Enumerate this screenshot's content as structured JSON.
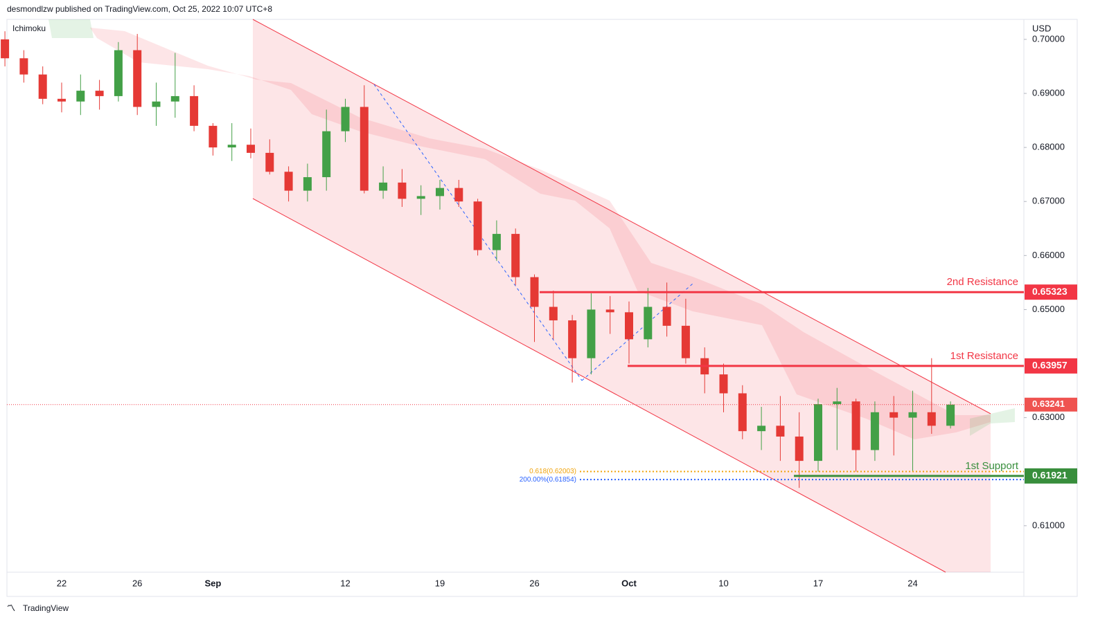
{
  "chart_data": {
    "type": "candlestick",
    "source": "desmondlzw published on TradingView.com, Oct 25, 2022 10:07 UTC+8",
    "indicator": "Ichimoku",
    "y_unit": "USD",
    "brand": "TradingView",
    "categories": [
      null,
      null,
      null,
      "22",
      null,
      null,
      null,
      "26",
      null,
      null,
      null,
      "Sep",
      null,
      null,
      null,
      null,
      null,
      null,
      "12",
      null,
      null,
      null,
      null,
      "19",
      null,
      null,
      null,
      null,
      "26",
      null,
      null,
      null,
      null,
      "Oct",
      null,
      null,
      null,
      null,
      "10",
      null,
      null,
      null,
      null,
      "17",
      null,
      null,
      null,
      null,
      "24",
      null,
      null
    ],
    "open": [
      0.7,
      0.6965,
      0.6935,
      0.689,
      0.6885,
      0.6905,
      0.6895,
      0.698,
      0.6875,
      0.6885,
      0.6895,
      0.684,
      0.68,
      0.6805,
      0.679,
      0.6755,
      0.672,
      0.6745,
      0.683,
      0.6875,
      0.672,
      0.6735,
      0.6705,
      0.671,
      0.6725,
      0.67,
      0.661,
      0.664,
      0.656,
      0.6505,
      0.648,
      0.641,
      0.65,
      0.6495,
      0.6445,
      0.6505,
      0.647,
      0.641,
      0.638,
      0.6345,
      0.6275,
      0.6285,
      0.6265,
      0.622,
      0.6325,
      0.633,
      0.624,
      0.631,
      0.63,
      0.631,
      0.6285
    ],
    "high": [
      0.7015,
      0.698,
      0.695,
      0.692,
      0.6935,
      0.6925,
      0.6995,
      0.701,
      0.692,
      0.6975,
      0.6915,
      0.6845,
      0.6845,
      0.6835,
      0.6815,
      0.6765,
      0.677,
      0.687,
      0.689,
      0.6915,
      0.6765,
      0.676,
      0.673,
      0.674,
      0.674,
      0.6705,
      0.6665,
      0.665,
      0.6565,
      0.6535,
      0.649,
      0.653,
      0.6525,
      0.6515,
      0.654,
      0.655,
      0.652,
      0.643,
      0.64,
      0.636,
      0.632,
      0.634,
      0.631,
      0.6335,
      0.6355,
      0.6335,
      0.633,
      0.634,
      0.635,
      0.641,
      0.633
    ],
    "low": [
      0.695,
      0.692,
      0.688,
      0.6865,
      0.686,
      0.687,
      0.6885,
      0.686,
      0.684,
      0.6855,
      0.683,
      0.6785,
      0.6775,
      0.678,
      0.675,
      0.67,
      0.67,
      0.672,
      0.681,
      0.6715,
      0.6705,
      0.669,
      0.6675,
      0.6685,
      0.669,
      0.66,
      0.659,
      0.6545,
      0.644,
      0.6445,
      0.6365,
      0.638,
      0.6455,
      0.64,
      0.643,
      0.645,
      0.64,
      0.6345,
      0.631,
      0.626,
      0.624,
      0.622,
      0.617,
      0.62,
      0.624,
      0.62,
      0.622,
      0.623,
      0.62,
      0.627,
      0.628
    ],
    "close": [
      0.6965,
      0.6935,
      0.689,
      0.6885,
      0.6905,
      0.6895,
      0.698,
      0.6875,
      0.6885,
      0.6895,
      0.684,
      0.68,
      0.6805,
      0.679,
      0.6755,
      0.672,
      0.6745,
      0.683,
      0.6875,
      0.672,
      0.6735,
      0.6705,
      0.671,
      0.6725,
      0.67,
      0.661,
      0.664,
      0.656,
      0.6505,
      0.648,
      0.641,
      0.65,
      0.6495,
      0.6445,
      0.6505,
      0.647,
      0.641,
      0.638,
      0.6345,
      0.6275,
      0.6285,
      0.6265,
      0.622,
      0.6325,
      0.633,
      0.624,
      0.631,
      0.63,
      0.631,
      0.6285,
      0.63241
    ],
    "up_color": "#43a047",
    "down_color": "#e53935",
    "ylim": [
      0.6014,
      0.7037
    ],
    "yticks": [
      {
        "value": 0.61,
        "label": "0.61000"
      },
      {
        "value": 0.63,
        "label": "0.63000"
      },
      {
        "value": 0.65,
        "label": "0.65000"
      },
      {
        "value": 0.66,
        "label": "0.66000"
      },
      {
        "value": 0.67,
        "label": "0.67000"
      },
      {
        "value": 0.68,
        "label": "0.68000"
      },
      {
        "value": 0.69,
        "label": "0.69000"
      },
      {
        "value": 0.7,
        "label": "0.70000"
      }
    ],
    "levels": [
      {
        "name": "2nd Resistance",
        "value": 0.65323,
        "color": "#f23645"
      },
      {
        "name": "1st Resistance",
        "value": 0.63957,
        "color": "#f23645"
      },
      {
        "name": "1st Support",
        "value": 0.61921,
        "color": "#388e3c"
      }
    ],
    "current_price": 0.63241,
    "fib": [
      {
        "label": "0.618(0.62003)",
        "value": 0.62003,
        "color": "#f0a30a"
      },
      {
        "label": "200.00%(0.61854)",
        "value": 0.61854,
        "color": "#2962ff"
      }
    ]
  }
}
